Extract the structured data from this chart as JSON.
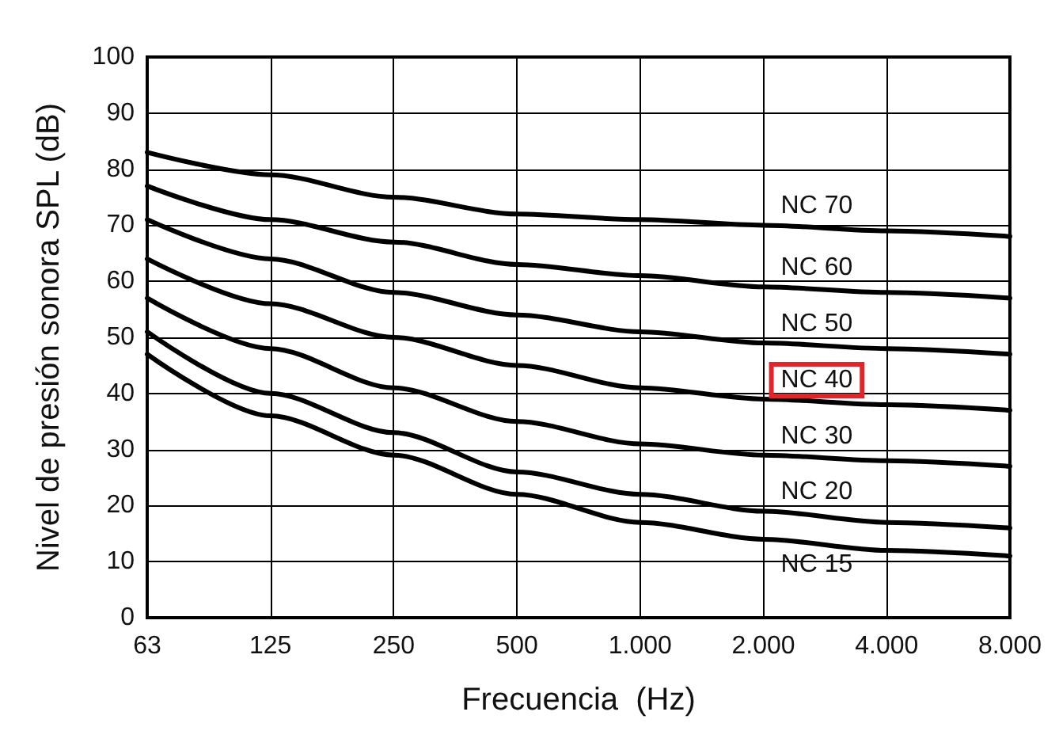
{
  "chart_data": {
    "type": "line",
    "xlabel": "Frecuencia  (Hz)",
    "ylabel": "Nivel de presión sonora SPL (dB)",
    "categories": [
      "63",
      "125",
      "250",
      "500",
      "1.000",
      "2.000",
      "4.000",
      "8.000"
    ],
    "ylim": [
      0,
      100
    ],
    "yticks": [
      0,
      10,
      20,
      30,
      40,
      50,
      60,
      70,
      80,
      90,
      100
    ],
    "grid": true,
    "legend": false,
    "marker": "none",
    "line_style": "solid",
    "series": [
      {
        "name": "NC 70",
        "color": "#000000",
        "values": [
          83,
          79,
          75,
          72,
          71,
          70,
          69,
          68
        ]
      },
      {
        "name": "NC 60",
        "color": "#000000",
        "values": [
          77,
          71,
          67,
          63,
          61,
          59,
          58,
          57
        ]
      },
      {
        "name": "NC 50",
        "color": "#000000",
        "values": [
          71,
          64,
          58,
          54,
          51,
          49,
          48,
          47
        ]
      },
      {
        "name": "NC 40",
        "color": "#000000",
        "values": [
          64,
          56,
          50,
          45,
          41,
          39,
          38,
          37
        ]
      },
      {
        "name": "NC 30",
        "color": "#000000",
        "values": [
          57,
          48,
          41,
          35,
          31,
          29,
          28,
          27
        ]
      },
      {
        "name": "NC 20",
        "color": "#000000",
        "values": [
          51,
          40,
          33,
          26,
          22,
          19,
          17,
          16
        ]
      },
      {
        "name": "NC 15",
        "color": "#000000",
        "values": [
          47,
          36,
          29,
          22,
          17,
          14,
          12,
          11
        ]
      }
    ]
  }
}
